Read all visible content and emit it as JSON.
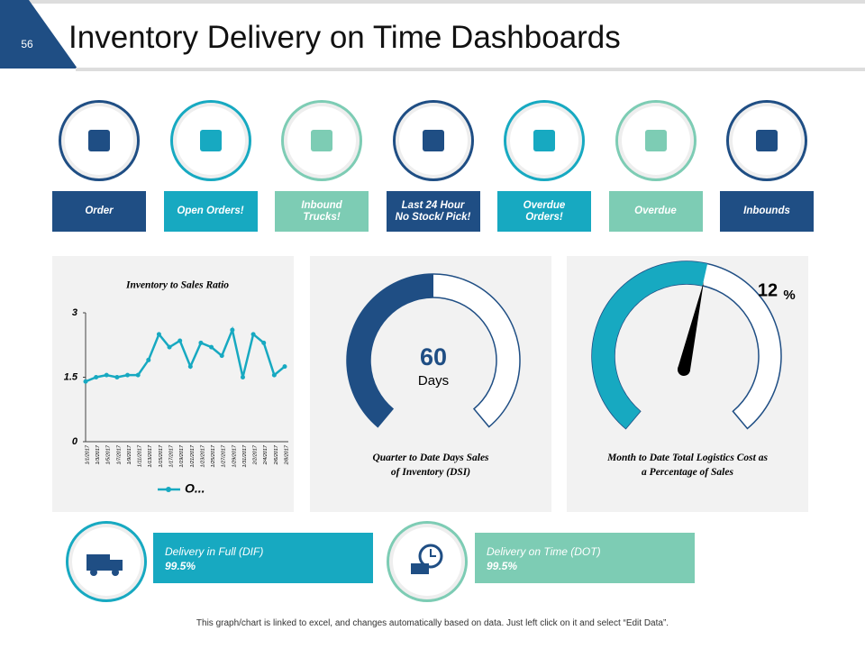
{
  "header": {
    "page_number": "56",
    "title": "Inventory Delivery on Time Dashboards"
  },
  "icons": [
    {
      "label": "Order",
      "color": "#1f4e84"
    },
    {
      "label": "Open Orders!",
      "color": "#17a9c1"
    },
    {
      "label": "Inbound Trucks!",
      "color": "#7dccb4"
    },
    {
      "label": "Last 24 Hour No Stock/ Pick!",
      "color": "#1f4e84"
    },
    {
      "label": "Overdue Orders!",
      "color": "#17a9c1"
    },
    {
      "label": "Overdue",
      "color": "#7dccb4"
    },
    {
      "label": "Inbounds",
      "color": "#1f4e84"
    }
  ],
  "chart_data": [
    {
      "type": "line",
      "title": "Inventory to Sales Ratio",
      "x": [
        "1/1/2017",
        "1/3/2017",
        "1/5/2017",
        "1/7/2017",
        "1/9/2017",
        "1/11/2017",
        "1/13/2017",
        "1/15/2017",
        "1/17/2017",
        "1/19/2017",
        "1/21/2017",
        "1/23/2017",
        "1/25/2017",
        "1/27/2017",
        "1/29/2017",
        "1/31/2017",
        "2/2/2017",
        "2/4/2017",
        "2/6/2017",
        "2/8/2017"
      ],
      "series": [
        {
          "name": "O...",
          "color": "#17a9c1",
          "values": [
            1.4,
            1.5,
            1.55,
            1.5,
            1.55,
            1.55,
            1.9,
            2.5,
            2.2,
            2.35,
            1.75,
            2.3,
            2.2,
            2.0,
            2.6,
            1.5,
            2.5,
            2.3,
            1.55,
            1.75
          ]
        }
      ],
      "ylim": [
        0,
        3
      ],
      "yticks": [
        0,
        1.5,
        3
      ],
      "legend": "bottom"
    },
    {
      "type": "gauge",
      "value": 60,
      "unit": "Days",
      "ylim": [
        0,
        120
      ],
      "color": "#1f4e84",
      "title": "Quarter to Date Days Sales of Inventory (DSI)"
    },
    {
      "type": "gauge",
      "value": 12,
      "unit": "%",
      "ylim": [
        0,
        22
      ],
      "color": "#17a9c1",
      "needle": true,
      "title": "Month to Date Total Logistics Cost as a Percentage of Sales"
    }
  ],
  "kpis": [
    {
      "label": "Delivery in Full (DIF)",
      "value": "99.5%",
      "color": "#17a9c1"
    },
    {
      "label": "Delivery on Time (DOT)",
      "value": "99.5%",
      "color": "#7dccb4"
    }
  ],
  "footer": "This graph/chart is linked to excel, and changes automatically based on data. Just left click on it and select “Edit Data”."
}
